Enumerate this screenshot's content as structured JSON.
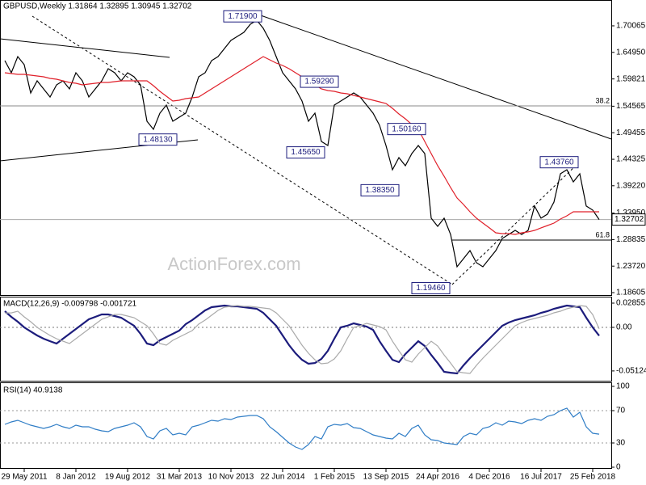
{
  "chart_data": [
    {
      "type": "line",
      "title": "GBPUSD,Weekly  1.31864 1.32895 1.30945 1.32702",
      "watermark": "ActionForex.com",
      "categories": [
        null,
        null,
        null,
        "29 May 2011",
        null,
        null,
        null,
        null,
        null,
        null,
        null,
        "8 Jan 2012",
        null,
        null,
        null,
        null,
        null,
        null,
        null,
        "19 Aug 2012",
        null,
        null,
        null,
        null,
        null,
        null,
        null,
        "31 Mar 2013",
        null,
        null,
        null,
        null,
        null,
        null,
        null,
        "10 Nov 2013",
        null,
        null,
        null,
        null,
        null,
        null,
        null,
        "22 Jun 2014",
        null,
        null,
        null,
        null,
        null,
        null,
        null,
        "1 Feb 2015",
        null,
        null,
        null,
        null,
        null,
        null,
        null,
        "13 Sep 2015",
        null,
        null,
        null,
        null,
        null,
        null,
        null,
        "24 Apr 2016",
        null,
        null,
        null,
        null,
        null,
        null,
        null,
        "4 Dec 2016",
        null,
        null,
        null,
        null,
        null,
        null,
        null,
        "16 Jul 2017",
        null,
        null,
        null,
        null,
        null,
        null,
        null,
        "25 Feb 2018",
        null
      ],
      "series": [
        {
          "color": "#000000",
          "values": [
            1.6336,
            1.6102,
            1.6414,
            1.6258,
            1.5712,
            1.5946,
            1.579,
            1.5634,
            1.5868,
            1.5946,
            1.579,
            1.6102,
            1.5946,
            1.5634,
            1.579,
            1.5946,
            1.618,
            1.6102,
            1.5946,
            1.6102,
            1.6024,
            1.5868,
            1.5166,
            1.5011,
            1.5322,
            1.5478,
            1.5166,
            1.5244,
            1.5322,
            1.5634,
            1.6024,
            1.6102,
            1.6336,
            1.6414,
            1.657,
            1.6726,
            1.6803,
            1.6881,
            1.7037,
            1.7115,
            1.6959,
            1.6726,
            1.6414,
            1.6102,
            1.5946,
            1.579,
            1.5556,
            1.5166,
            1.5322,
            1.4777,
            1.4699,
            1.5478,
            1.5556,
            1.5634,
            1.5712,
            1.5634,
            1.5478,
            1.5322,
            1.5089,
            1.4699,
            1.4231,
            1.4465,
            1.4309,
            1.4543,
            1.4699,
            1.4543,
            1.3296,
            1.314,
            1.3296,
            1.2984,
            1.236,
            1.2516,
            1.2672,
            1.2438,
            1.236,
            1.2516,
            1.2672,
            1.2906,
            1.2984,
            1.3062,
            1.2984,
            1.3062,
            1.353,
            1.3296,
            1.3374,
            1.3607,
            1.4153,
            1.4231,
            1.3997,
            1.4153,
            1.353,
            1.3452,
            1.327
          ]
        },
        {
          "color": "#e0202a",
          "values": [
            1.6102,
            1.6086,
            1.6071,
            1.6071,
            1.6055,
            1.604,
            1.6024,
            1.5993,
            1.5977,
            1.5946,
            1.5915,
            1.5899,
            1.5868,
            1.5884,
            1.5899,
            1.5915,
            1.5915,
            1.593,
            1.5946,
            1.5946,
            1.5946,
            1.5946,
            1.5946,
            1.5852,
            1.5743,
            1.565,
            1.5556,
            1.5572,
            1.5603,
            1.5619,
            1.5634,
            1.5712,
            1.579,
            1.5868,
            1.5946,
            1.6024,
            1.6102,
            1.618,
            1.6258,
            1.6336,
            1.6414,
            1.6351,
            1.6289,
            1.6242,
            1.618,
            1.6102,
            1.6024,
            1.5946,
            1.5868,
            1.579,
            1.5759,
            1.5743,
            1.5712,
            1.5697,
            1.5665,
            1.5634,
            1.5603,
            1.5572,
            1.5541,
            1.551,
            1.5416,
            1.5307,
            1.5213,
            1.5104,
            1.5011,
            1.4777,
            1.4543,
            1.4309,
            1.4106,
            1.3888,
            1.3686,
            1.3561,
            1.342,
            1.3296,
            1.3202,
            1.3109,
            1.3015,
            1.2999,
            1.2999,
            1.2984,
            1.3015,
            1.3031,
            1.3062,
            1.3109,
            1.3155,
            1.3202,
            1.328,
            1.3342,
            1.342,
            1.342,
            1.342,
            1.342,
            1.342
          ]
        }
      ],
      "ylim": [
        1.1814,
        1.7505
      ],
      "yticks": [
        1.70065,
        {
          "value": 1.6495,
          "label": "1.64950"
        },
        1.59821,
        1.54565,
        1.49455,
        1.44325,
        {
          "value": 1.3922,
          "label": "1.39220"
        },
        {
          "value": 1.3395,
          "label": "1.33950"
        },
        1.28835,
        {
          "value": 1.2372,
          "label": "1.23720"
        },
        1.18605
      ],
      "annotations": [
        {
          "value": 1.719,
          "label": "1.71900"
        },
        {
          "value": 1.5929,
          "label": "1.59290"
        },
        {
          "value": 1.4813,
          "label": "1.48130"
        },
        {
          "value": 1.4565,
          "label": "1.45650"
        },
        {
          "value": 1.5016,
          "label": "1.50160"
        },
        {
          "value": 1.3835,
          "label": "1.38350"
        },
        {
          "value": 1.4376,
          "label": "1.43760"
        },
        {
          "value": 1.1946,
          "label": "1.19460"
        }
      ],
      "fib_levels": [
        {
          "name": "38.2",
          "price": 1.5463
        },
        {
          "name": "61.8",
          "price": 1.2875
        }
      ],
      "last_price": {
        "value": 1.32702,
        "label": "1.32702"
      }
    },
    {
      "type": "line",
      "title": "MACD(12,26,9) -0.009798 -0.001721",
      "series": [
        {
          "color": "#1c1c7c",
          "values": [
            0.019,
            0.0124,
            0.0067,
            0,
            -0.0048,
            -0.0095,
            -0.0133,
            -0.0162,
            -0.019,
            -0.0133,
            -0.0076,
            -0.0019,
            0.0038,
            0.0095,
            0.0124,
            0.0152,
            0.0152,
            0.0133,
            0.0114,
            0.0067,
            0.0019,
            -0.0076,
            -0.019,
            -0.0209,
            -0.0152,
            -0.0114,
            -0.0076,
            -0.0038,
            0.0038,
            0.0086,
            0.0143,
            0.02,
            0.0238,
            0.0247,
            0.0257,
            0.0247,
            0.0247,
            0.0238,
            0.0228,
            0.0219,
            0.0171,
            0.0095,
            0.0019,
            -0.0095,
            -0.0209,
            -0.0304,
            -0.0381,
            -0.0428,
            -0.0419,
            -0.0371,
            -0.0276,
            -0.0133,
            0,
            0.0019,
            0.0048,
            0.0029,
            0.001,
            -0.0029,
            -0.0162,
            -0.0276,
            -0.0381,
            -0.0409,
            -0.0314,
            -0.0238,
            -0.0162,
            -0.0219,
            -0.0324,
            -0.0419,
            -0.0523,
            -0.0533,
            -0.0542,
            -0.0447,
            -0.0362,
            -0.0285,
            -0.0209,
            -0.0133,
            -0.0057,
            0.0019,
            0.0057,
            0.0086,
            0.0105,
            0.0124,
            0.0143,
            0.0171,
            0.019,
            0.0219,
            0.0238,
            0.0257,
            0.0247,
            0.0238,
            0.0114,
            0,
            -0.0098
          ]
        },
        {
          "color": "#aaaaaa",
          "values": [
            0.017,
            0.017,
            0.019,
            0.0124,
            0.0067,
            0,
            -0.0048,
            -0.0095,
            -0.0133,
            -0.0162,
            -0.019,
            -0.0133,
            -0.0076,
            -0.0019,
            0.0038,
            0.0095,
            0.0124,
            0.0152,
            0.0152,
            0.0133,
            0.0114,
            0.0067,
            0.0019,
            -0.0076,
            -0.019,
            -0.0209,
            -0.0152,
            -0.0114,
            -0.0076,
            -0.0038,
            0.0038,
            0.0086,
            0.0143,
            0.02,
            0.0238,
            0.0247,
            0.0257,
            0.0247,
            0.0247,
            0.0238,
            0.0228,
            0.0219,
            0.0171,
            0.0095,
            0.0019,
            -0.0095,
            -0.0209,
            -0.0304,
            -0.0381,
            -0.0428,
            -0.0419,
            -0.0371,
            -0.0276,
            -0.0133,
            0,
            0.0019,
            0.0048,
            0.0029,
            0.001,
            -0.0029,
            -0.0162,
            -0.0276,
            -0.0381,
            -0.0409,
            -0.0314,
            -0.0238,
            -0.0162,
            -0.0219,
            -0.0324,
            -0.0419,
            -0.0523,
            -0.0533,
            -0.0542,
            -0.0447,
            -0.0362,
            -0.0285,
            -0.0209,
            -0.0133,
            -0.0057,
            0.0019,
            0.0057,
            0.0086,
            0.0105,
            0.0124,
            0.0143,
            0.0171,
            0.019,
            0.0219,
            0.0238,
            0.0257,
            0.0247,
            0.015,
            -0.0017
          ]
        }
      ],
      "ylim": [
        -0.0637,
        0.0352
      ],
      "yticks": [
        0.02855,
        {
          "value": 0,
          "label": "0.00"
        },
        -0.05124
      ],
      "zero_line": true
    },
    {
      "type": "line",
      "title": "RSI(14) 40.9138",
      "series": [
        {
          "color": "#2f7dc6",
          "values": [
            53,
            56,
            58,
            55,
            52,
            50,
            48,
            50,
            53,
            50,
            48,
            52,
            50,
            50,
            47,
            45,
            44,
            48,
            50,
            52,
            55,
            50,
            38,
            35,
            45,
            48,
            40,
            42,
            40,
            50,
            52,
            55,
            58,
            57,
            60,
            59,
            62,
            63,
            64,
            64,
            60,
            50,
            44,
            37,
            30,
            25,
            22,
            28,
            38,
            35,
            50,
            53,
            52,
            54,
            49,
            48,
            44,
            40,
            38,
            36,
            35,
            42,
            38,
            48,
            52,
            40,
            34,
            33,
            30,
            29,
            28,
            38,
            42,
            40,
            48,
            50,
            55,
            52,
            57,
            56,
            54,
            58,
            60,
            58,
            63,
            65,
            70,
            73,
            62,
            68,
            50,
            42,
            40.91
          ]
        }
      ],
      "ylim": [
        0,
        100
      ],
      "yticks": [
        100,
        70,
        30,
        0
      ],
      "grid": true
    }
  ]
}
